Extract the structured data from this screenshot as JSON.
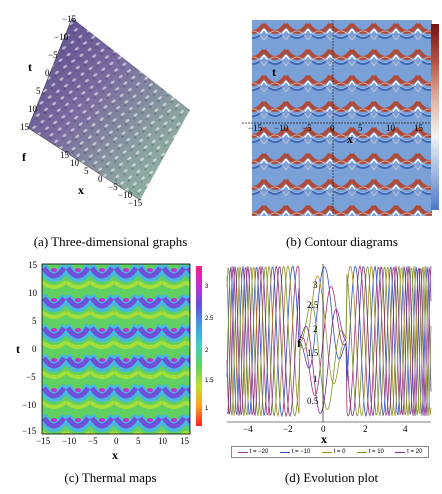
{
  "panels": {
    "a": {
      "caption": "(a)  Three-dimensional graphs",
      "axis_t": "t",
      "axis_f": "f",
      "axis_x": "x",
      "t_ticks": [
        "−15",
        "−10",
        "−5",
        "0",
        "5",
        "10",
        "15"
      ],
      "x_ticks": [
        "15",
        "10",
        "5",
        "0",
        "−5",
        "−10",
        "−15"
      ]
    },
    "b": {
      "caption": "(b)  Contour diagrams",
      "axis_t": "t",
      "axis_x": "x",
      "x_ticks": [
        "−15",
        "−10",
        "−5",
        "0",
        "5",
        "10",
        "15"
      ],
      "colorbar_colors": [
        "#7a1010",
        "#b85040",
        "#e0b0a0",
        "#f2f2f2",
        "#a0b8e0",
        "#4a78c8"
      ]
    },
    "c": {
      "caption": "(c)  Thermal maps",
      "axis_t": "t",
      "axis_x": "x",
      "y_ticks": [
        "15",
        "10",
        "5",
        "0",
        "−5",
        "−10",
        "−15"
      ],
      "x_ticks": [
        "−15",
        "−10",
        "−5",
        "0",
        "5",
        "10",
        "15"
      ],
      "colorbar_ticks": [
        "3",
        "2.5",
        "2",
        "1.5",
        "1"
      ]
    },
    "d": {
      "caption": "(d)  Evolution plot",
      "axis_f": "f",
      "axis_x": "x",
      "y_ticks": [
        "3",
        "2.5",
        "2",
        "1.5",
        "1",
        "0.5"
      ],
      "x_ticks": [
        "−4",
        "−2",
        "0",
        "2",
        "4"
      ],
      "legend": [
        {
          "label": "t = −20",
          "color": "#a0307a"
        },
        {
          "label": "t = −10",
          "color": "#3050c0"
        },
        {
          "label": "t = 0",
          "color": "#a08f20"
        },
        {
          "label": "t = 10",
          "color": "#7a9030"
        },
        {
          "label": "t = 20",
          "color": "#7a3080"
        }
      ]
    }
  }
}
